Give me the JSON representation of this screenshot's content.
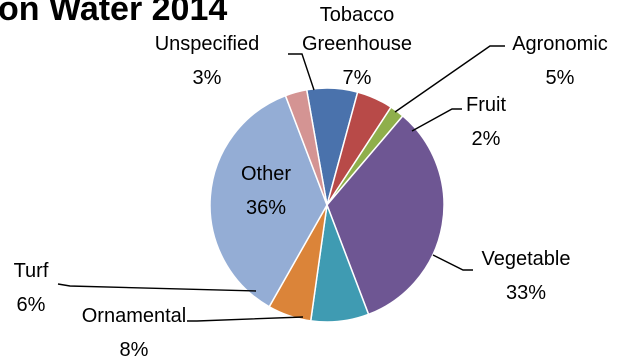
{
  "chart_data": {
    "type": "pie",
    "title": "on Water 2014",
    "start_angle_deg": -10,
    "direction": "clockwise",
    "slices": [
      {
        "name": "Tobacco Greenhouse",
        "value": 7,
        "label_lines": [
          "Tobacco",
          "Greenhouse",
          "7%"
        ],
        "color": "#4A72AC"
      },
      {
        "name": "Agronomic",
        "value": 5,
        "label_lines": [
          "Agronomic",
          "5%"
        ],
        "color": "#B84A48"
      },
      {
        "name": "Fruit",
        "value": 2,
        "label_lines": [
          "Fruit",
          "2%"
        ],
        "color": "#8FAF4B"
      },
      {
        "name": "Vegetable",
        "value": 33,
        "label_lines": [
          "Vegetable",
          "33%"
        ],
        "color": "#6E5693"
      },
      {
        "name": "Ornamental",
        "value": 8,
        "label_lines": [
          "Ornamental",
          "8%"
        ],
        "color": "#3F9BB2"
      },
      {
        "name": "Turf",
        "value": 6,
        "label_lines": [
          "Turf",
          "6%"
        ],
        "color": "#DB8439"
      },
      {
        "name": "Other",
        "value": 36,
        "label_lines": [
          "Other",
          "36%"
        ],
        "color": "#94ADD5"
      },
      {
        "name": "Unspecified",
        "value": 3,
        "label_lines": [
          "Unspecified",
          "3%"
        ],
        "color": "#D49493"
      }
    ]
  }
}
